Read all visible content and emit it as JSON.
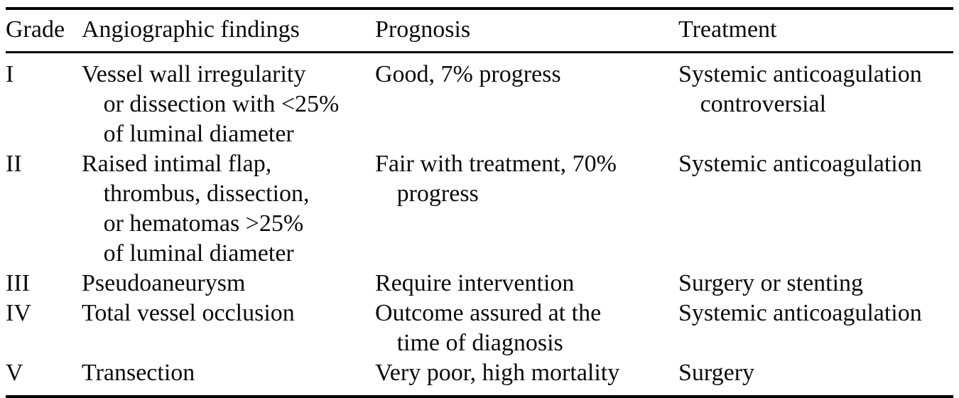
{
  "table": {
    "headers": [
      "Grade",
      "Angiographic findings",
      "Prognosis",
      "Treatment"
    ],
    "rows": [
      {
        "grade": "I",
        "findings": "Vessel wall irregularity\nor dissection with <25%\nof luminal diameter",
        "prognosis": "Good, 7% progress",
        "treatment": "Systemic anticoagulation\ncontroversial"
      },
      {
        "grade": "II",
        "findings": "Raised intimal flap,\nthrombus, dissection,\nor hematomas >25%\nof luminal diameter",
        "prognosis": "Fair with treatment, 70%\nprogress",
        "treatment": "Systemic anticoagulation"
      },
      {
        "grade": "III",
        "findings": "Pseudoaneurysm",
        "prognosis": "Require intervention",
        "treatment": "Surgery or stenting"
      },
      {
        "grade": "IV",
        "findings": "Total vessel occlusion",
        "prognosis": "Outcome assured at the\ntime of diagnosis",
        "treatment": "Systemic anticoagulation"
      },
      {
        "grade": "V",
        "findings": "Transection",
        "prognosis": "Very poor, high mortality",
        "treatment": "Surgery"
      }
    ],
    "colors": {
      "text": "#0b0b0b",
      "rule": "#000000",
      "background": "#ffffff"
    }
  }
}
